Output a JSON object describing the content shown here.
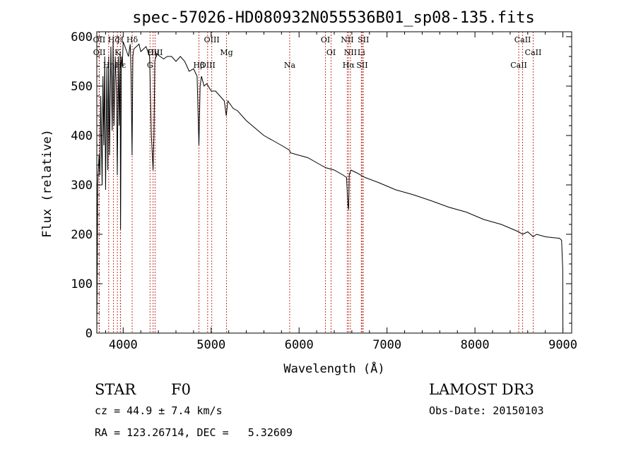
{
  "chart_data": {
    "type": "line",
    "title": "spec-57026-HD080932N055536B01_sp08-135.fits",
    "xlabel": "Wavelength (Å)",
    "ylabel": "Flux (relative)",
    "xlim": [
      3700,
      9100
    ],
    "ylim": [
      0,
      610
    ],
    "xticks": [
      4000,
      5000,
      6000,
      7000,
      8000,
      9000
    ],
    "yticks": [
      0,
      100,
      200,
      300,
      400,
      500,
      600
    ],
    "series": [
      {
        "name": "flux",
        "x": [
          3700,
          3705,
          3710,
          3725,
          3735,
          3745,
          3760,
          3770,
          3780,
          3790,
          3800,
          3815,
          3825,
          3835,
          3845,
          3860,
          3875,
          3885,
          3895,
          3910,
          3925,
          3933,
          3945,
          3955,
          3965,
          3970,
          3980,
          3990,
          4000,
          4020,
          4040,
          4060,
          4080,
          4090,
          4101,
          4110,
          4120,
          4150,
          4180,
          4200,
          4230,
          4260,
          4300,
          4320,
          4340,
          4350,
          4360,
          4380,
          4420,
          4460,
          4500,
          4550,
          4600,
          4650,
          4700,
          4750,
          4800,
          4840,
          4861,
          4875,
          4890,
          4920,
          4950,
          5000,
          5050,
          5100,
          5150,
          5172,
          5190,
          5250,
          5300,
          5400,
          5500,
          5600,
          5700,
          5800,
          5893,
          5900,
          6000,
          6100,
          6200,
          6300,
          6400,
          6500,
          6540,
          6555,
          6563,
          6570,
          6590,
          6650,
          6750,
          6900,
          7100,
          7300,
          7500,
          7700,
          7900,
          8100,
          8300,
          8498,
          8542,
          8600,
          8662,
          8700,
          8800,
          8900,
          8960,
          8985,
          8998,
          9000
        ],
        "values": [
          5,
          120,
          300,
          360,
          320,
          480,
          300,
          520,
          380,
          560,
          290,
          540,
          330,
          560,
          360,
          580,
          410,
          590,
          420,
          560,
          480,
          320,
          560,
          420,
          570,
          210,
          560,
          540,
          590,
          580,
          570,
          560,
          585,
          520,
          360,
          560,
          575,
          580,
          585,
          570,
          575,
          580,
          560,
          400,
          330,
          400,
          550,
          565,
          560,
          555,
          560,
          560,
          550,
          560,
          550,
          530,
          535,
          520,
          380,
          500,
          520,
          500,
          505,
          490,
          490,
          480,
          470,
          440,
          470,
          455,
          450,
          430,
          415,
          400,
          390,
          380,
          370,
          365,
          360,
          355,
          345,
          335,
          330,
          320,
          315,
          260,
          250,
          320,
          330,
          325,
          315,
          305,
          290,
          280,
          268,
          255,
          245,
          230,
          220,
          205,
          200,
          205,
          195,
          200,
          195,
          193,
          192,
          188,
          130,
          5
        ]
      }
    ],
    "line_markers": [
      {
        "label": "Hδ",
        "x": 4102
      },
      {
        "label": "OIII",
        "x": 4363
      },
      {
        "label": "OIII",
        "x": 4960
      },
      {
        "label": "OIII",
        "x": 5007
      },
      {
        "label": "Mg",
        "x": 5175
      },
      {
        "label": "Na",
        "x": 5893
      },
      {
        "label": "OI",
        "x": 6300
      },
      {
        "label": "OI",
        "x": 6364
      },
      {
        "label": "Hα",
        "x": 6563
      },
      {
        "label": "NII",
        "x": 6548
      },
      {
        "label": "NII",
        "x": 6584
      },
      {
        "label": "SII",
        "x": 6717
      },
      {
        "label": "SII",
        "x": 6731
      },
      {
        "label": "Li",
        "x": 6708
      },
      {
        "label": "CaII",
        "x": 8498
      },
      {
        "label": "CaII",
        "x": 8542
      },
      {
        "label": "CaII",
        "x": 8662
      },
      {
        "label": "Hβ",
        "x": 4861
      },
      {
        "label": "OII",
        "x": 3727
      },
      {
        "label": "OII",
        "x": 3729
      },
      {
        "label": "Hε",
        "x": 3970
      },
      {
        "label": "H",
        "x": 3968
      },
      {
        "label": "K",
        "x": 3934
      },
      {
        "label": "Hη",
        "x": 3835
      },
      {
        "label": "Hζ",
        "x": 3889
      },
      {
        "label": "Hγ",
        "x": 4340
      },
      {
        "label": "G",
        "x": 4305
      }
    ]
  },
  "info": {
    "object_class": "STAR",
    "subclass": "F0",
    "survey": "LAMOST DR3",
    "redshift_line": "cz = 44.9 ± 7.4 km/s",
    "obs_date_line": "Obs-Date: 20150103",
    "coords_line": "RA = 123.26714, DEC =   5.32609"
  }
}
